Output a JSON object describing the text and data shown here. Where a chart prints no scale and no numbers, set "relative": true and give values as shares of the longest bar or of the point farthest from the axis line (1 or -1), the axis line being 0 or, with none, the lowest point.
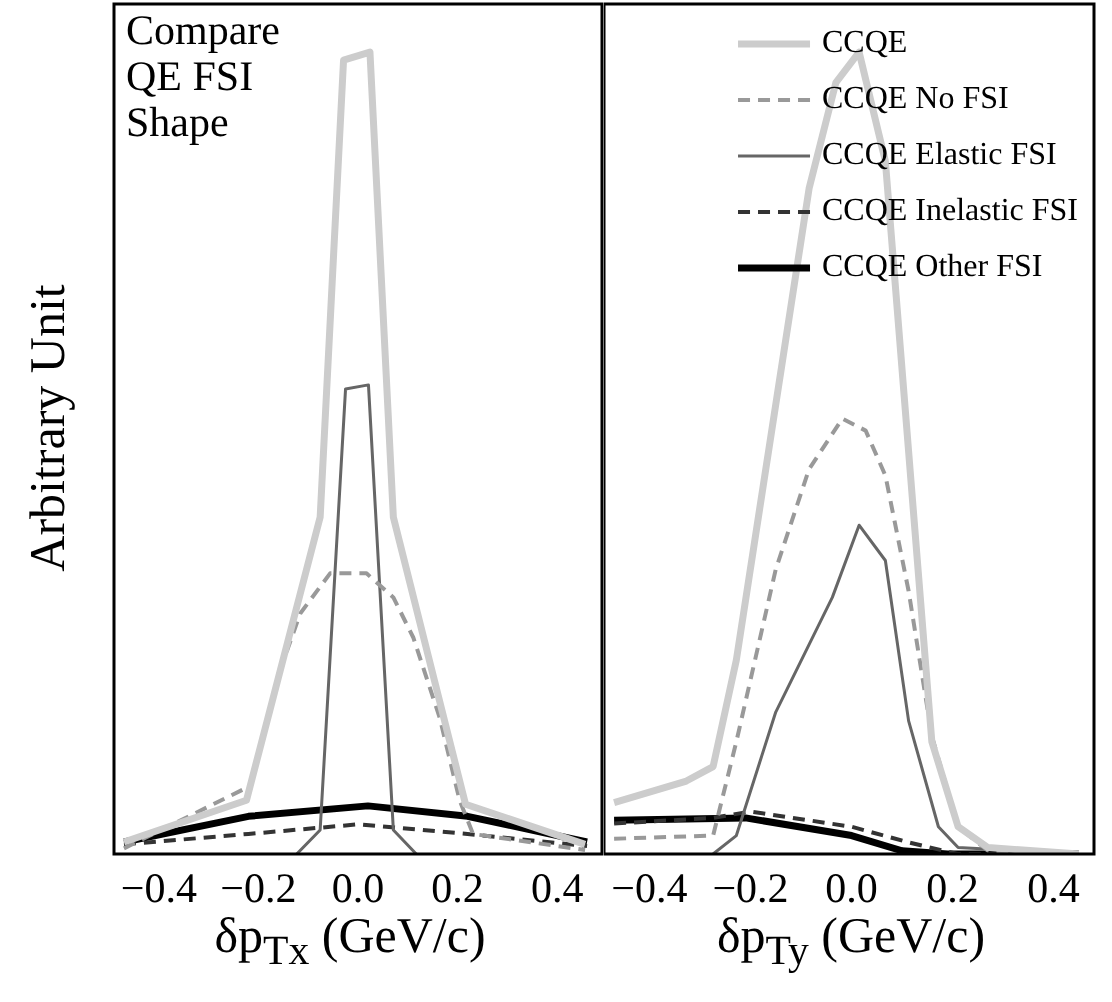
{
  "chart_data": [
    {
      "type": "line",
      "relative": true,
      "ylabel": "Arbitrary Unit",
      "xlabel": "δp$_{Tx}$ (GeV/c)",
      "annotations": [
        "Compare\nQE FSI\nShape"
      ],
      "xlim": [
        -0.49,
        0.49
      ],
      "xticks": [
        {
          "value": -0.4,
          "label": "−0.4"
        },
        {
          "value": -0.2,
          "label": "−0.2"
        },
        {
          "value": 0,
          "label": "0.0"
        },
        {
          "value": 0.2,
          "label": "0.2"
        },
        {
          "value": 0.4,
          "label": "0.4"
        }
      ],
      "grid": false,
      "legend": false,
      "marker": "none",
      "series": [
        {
          "color": "#cccccc",
          "line_style": "solid",
          "x": [
            -0.47,
            -0.224,
            -0.076,
            -0.029,
            0.024,
            0.071,
            0.216,
            0.456
          ],
          "values": [
            0.015,
            0.067,
            0.42,
            0.99,
            1,
            0.42,
            0.062,
            0.012
          ]
        },
        {
          "color": "#999999",
          "line_style": "dashed",
          "x": [
            -0.47,
            -0.216,
            -0.156,
            -0.116,
            -0.056,
            0.017,
            0.071,
            0.111,
            0.164,
            0.204,
            0.231,
            0.456
          ],
          "values": [
            0.007,
            0.085,
            0.23,
            0.3,
            0.35,
            0.35,
            0.32,
            0.27,
            0.17,
            0.067,
            0.025,
            0.005
          ]
        },
        {
          "color": "#666666",
          "line_style": "solid",
          "x": [
            -0.123,
            -0.076,
            -0.025,
            0.021,
            0.071,
            0.117
          ],
          "values": [
            0,
            0.03,
            0.58,
            0.585,
            0.03,
            0
          ]
        },
        {
          "color": "#333333",
          "line_style": "dashed",
          "x": [
            -0.47,
            -0.22,
            0.0,
            0.22,
            0.46
          ],
          "values": [
            0.012,
            0.025,
            0.037,
            0.025,
            0.01
          ]
        },
        {
          "color": "#000000",
          "line_style": "solid",
          "x": [
            -0.47,
            -0.22,
            0.02,
            0.22,
            0.46
          ],
          "values": [
            0.015,
            0.047,
            0.06,
            0.047,
            0.015
          ]
        }
      ]
    },
    {
      "type": "line",
      "relative": true,
      "xlabel": "δp$_{Ty}$ (GeV/c)",
      "xlim": [
        -0.49,
        0.48
      ],
      "xticks": [
        {
          "value": -0.4,
          "label": "−0.4"
        },
        {
          "value": -0.2,
          "label": "−0.2"
        },
        {
          "value": 0,
          "label": "0.0"
        },
        {
          "value": 0.2,
          "label": "0.2"
        },
        {
          "value": 0.4,
          "label": "0.4"
        }
      ],
      "grid": false,
      "legend": "top right",
      "marker": "none",
      "series": [
        {
          "name": "CCQE",
          "color": "#cccccc",
          "line_style": "solid",
          "x": [
            -0.47,
            -0.327,
            -0.274,
            -0.228,
            -0.084,
            -0.031,
            0.015,
            0.067,
            0.159,
            0.211,
            0.27,
            0.45
          ],
          "values": [
            0.064,
            0.091,
            0.109,
            0.242,
            0.83,
            0.962,
            1,
            0.864,
            0.14,
            0.034,
            0.008,
            0
          ]
        },
        {
          "name": "CCQE No FSI",
          "color": "#999999",
          "line_style": "dashed",
          "x": [
            -0.47,
            -0.274,
            -0.228,
            -0.15,
            -0.084,
            -0.018,
            0.028,
            0.067,
            0.113,
            0.159,
            0.211,
            0.27,
            0.45
          ],
          "values": [
            0.019,
            0.023,
            0.14,
            0.355,
            0.48,
            0.543,
            0.528,
            0.472,
            0.328,
            0.147,
            0.034,
            0.004,
            0
          ]
        },
        {
          "name": "CCQE Elastic FSI",
          "color": "#666666",
          "line_style": "solid",
          "x": [
            -0.274,
            -0.228,
            -0.15,
            -0.038,
            0.015,
            0.067,
            0.113,
            0.172,
            0.211,
            0.45
          ],
          "values": [
            0,
            0.023,
            0.177,
            0.32,
            0.41,
            0.366,
            0.166,
            0.034,
            0.008,
            0
          ]
        },
        {
          "name": "CCQE Inelastic FSI",
          "color": "#333333",
          "line_style": "dashed",
          "x": [
            -0.47,
            -0.274,
            -0.2,
            0.0,
            0.11,
            0.21,
            0.45
          ],
          "values": [
            0.038,
            0.045,
            0.053,
            0.034,
            0.015,
            0,
            0
          ]
        },
        {
          "name": "CCQE Other FSI",
          "color": "#000000",
          "line_style": "solid",
          "x": [
            -0.47,
            -0.21,
            0.0,
            0.1,
            0.19,
            0.45
          ],
          "values": [
            0.042,
            0.045,
            0.023,
            0.004,
            0,
            0
          ]
        }
      ]
    }
  ]
}
